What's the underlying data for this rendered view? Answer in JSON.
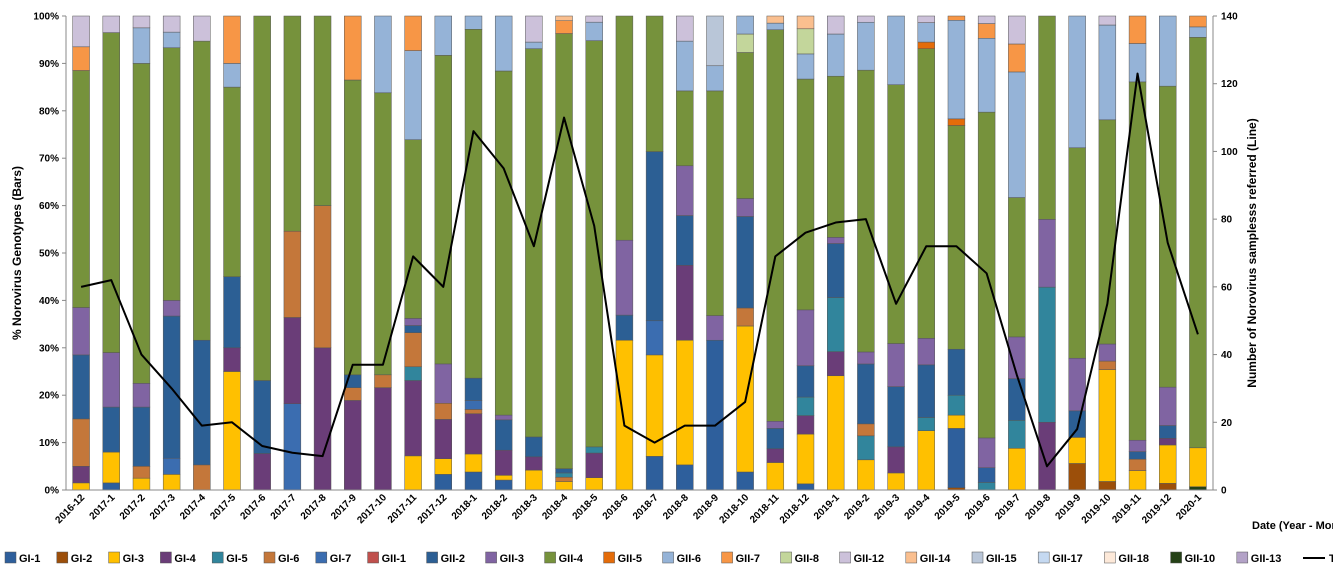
{
  "chart_data": {
    "type": "bar",
    "stacked": true,
    "y_left_label": "% Norovirus Genotypes (Bars)",
    "y_right_label": "Number of Norovirus samplesss referred (Line)",
    "x_label": "Date (Year - Month)",
    "y_left_ticks": [
      "0%",
      "10%",
      "20%",
      "30%",
      "40%",
      "50%",
      "60%",
      "70%",
      "80%",
      "90%",
      "100%"
    ],
    "y_right_range": [
      0,
      140
    ],
    "y_right_ticks": [
      "0",
      "20",
      "40",
      "60",
      "80",
      "100",
      "120",
      "140"
    ],
    "grid": false,
    "legend_position": "bottom",
    "categories": [
      "2016-12",
      "2017-1",
      "2017-2",
      "2017-3",
      "2017-4",
      "2017-5",
      "2017-6",
      "2017-7",
      "2017-8",
      "2017-9",
      "2017-10",
      "2017-11",
      "2017-12",
      "2018-1",
      "2018-2",
      "2018-3",
      "2018-4",
      "2018-5",
      "2018-6",
      "2018-7",
      "2018-8",
      "2018-9",
      "2018-10",
      "2018-11",
      "2018-12",
      "2019-1",
      "2019-2",
      "2019-3",
      "2019-4",
      "2019-5",
      "2019-6",
      "2019-7",
      "2019-8",
      "2019-9",
      "2019-10",
      "2019-11",
      "2019-12",
      "2020-1"
    ],
    "genotypes": [
      {
        "name": "GI-1",
        "color": "#2e5f9c"
      },
      {
        "name": "GI-2",
        "color": "#9c4f0a"
      },
      {
        "name": "GI-3",
        "color": "#ffc000"
      },
      {
        "name": "GI-4",
        "color": "#6a3d78"
      },
      {
        "name": "GI-5",
        "color": "#31859c"
      },
      {
        "name": "GI-6",
        "color": "#c4773a"
      },
      {
        "name": "GI-7",
        "color": "#3b6db0"
      },
      {
        "name": "GII-1",
        "color": "#c0504d"
      },
      {
        "name": "GII-2",
        "color": "#2c5f94"
      },
      {
        "name": "GII-3",
        "color": "#8064a2"
      },
      {
        "name": "GII-4",
        "color": "#76923c"
      },
      {
        "name": "GII-5",
        "color": "#e46c0a"
      },
      {
        "name": "GII-6",
        "color": "#95b3d7"
      },
      {
        "name": "GII-7",
        "color": "#f79646"
      },
      {
        "name": "GII-8",
        "color": "#c3d69b"
      },
      {
        "name": "GII-12",
        "color": "#ccc1da"
      },
      {
        "name": "GII-14",
        "color": "#fabf8f"
      },
      {
        "name": "GII-15",
        "color": "#b9c6d8"
      },
      {
        "name": "GII-17",
        "color": "#c5d9f1"
      },
      {
        "name": "GII-18",
        "color": "#fde9d9"
      },
      {
        "name": "GII-10",
        "color": "#254117"
      },
      {
        "name": "GII-13",
        "color": "#b3a2c7"
      }
    ],
    "stacks": [
      [
        [
          "GI-3",
          1.5
        ],
        [
          "GI-4",
          3.5
        ],
        [
          "GI-6",
          10
        ],
        [
          "GII-2",
          13.5
        ],
        [
          "GII-3",
          10
        ],
        [
          "GII-4",
          50
        ],
        [
          "GII-7",
          5
        ],
        [
          "GII-12",
          6.5
        ]
      ],
      [
        [
          "GI-1",
          1.5
        ],
        [
          "GI-3",
          6.5
        ],
        [
          "GII-2",
          9.5
        ],
        [
          "GII-3",
          11.5
        ],
        [
          "GII-4",
          67.5
        ],
        [
          "GII-12",
          3.5
        ]
      ],
      [
        [
          "GI-3",
          2.5
        ],
        [
          "GI-6",
          2.5
        ],
        [
          "GII-2",
          12.5
        ],
        [
          "GII-3",
          5
        ],
        [
          "GII-4",
          67.5
        ],
        [
          "GII-6",
          7.5
        ],
        [
          "GII-12",
          2.5
        ]
      ],
      [
        [
          "GI-3",
          3.3
        ],
        [
          "GI-7",
          3.4
        ],
        [
          "GII-2",
          30
        ],
        [
          "GII-3",
          3.3
        ],
        [
          "GII-4",
          53.3
        ],
        [
          "GII-6",
          3.3
        ],
        [
          "GII-12",
          3.4
        ]
      ],
      [
        [
          "GI-6",
          5.3
        ],
        [
          "GII-2",
          26.3
        ],
        [
          "GII-4",
          63.1
        ],
        [
          "GII-12",
          5.3
        ]
      ],
      [
        [
          "GI-3",
          25
        ],
        [
          "GI-4",
          5
        ],
        [
          "GII-2",
          15
        ],
        [
          "GII-4",
          40
        ],
        [
          "GII-6",
          5
        ],
        [
          "GII-7",
          10
        ]
      ],
      [
        [
          "GI-4",
          7.7
        ],
        [
          "GII-2",
          15.4
        ],
        [
          "GII-4",
          76.9
        ]
      ],
      [
        [
          "GI-7",
          18.2
        ],
        [
          "GI-4",
          18.2
        ],
        [
          "GI-6",
          18.2
        ],
        [
          "GII-4",
          45.4
        ]
      ],
      [
        [
          "GI-4",
          30
        ],
        [
          "GI-6",
          30
        ],
        [
          "GII-4",
          40
        ]
      ],
      [
        [
          "GI-4",
          18.9
        ],
        [
          "GI-6",
          2.7
        ],
        [
          "GII-2",
          2.7
        ],
        [
          "GII-4",
          62.2
        ],
        [
          "GII-7",
          13.5
        ]
      ],
      [
        [
          "GI-4",
          21.6
        ],
        [
          "GI-6",
          2.7
        ],
        [
          "GII-4",
          59.5
        ],
        [
          "GII-6",
          16.2
        ]
      ],
      [
        [
          "GI-3",
          7.2
        ],
        [
          "GI-4",
          15.9
        ],
        [
          "GI-5",
          2.9
        ],
        [
          "GI-6",
          7.2
        ],
        [
          "GII-2",
          1.5
        ],
        [
          "GII-3",
          1.5
        ],
        [
          "GII-4",
          37.7
        ],
        [
          "GII-6",
          18.8
        ],
        [
          "GII-7",
          7.3
        ]
      ],
      [
        [
          "GI-1",
          3.3
        ],
        [
          "GI-3",
          3.3
        ],
        [
          "GI-4",
          8.3
        ],
        [
          "GI-6",
          3.4
        ],
        [
          "GII-3",
          8.3
        ],
        [
          "GII-4",
          65.1
        ],
        [
          "GII-6",
          8.3
        ]
      ],
      [
        [
          "GI-1",
          3.8
        ],
        [
          "GI-3",
          3.8
        ],
        [
          "GI-4",
          8.5
        ],
        [
          "GI-6",
          0.9
        ],
        [
          "GI-7",
          1.9
        ],
        [
          "GII-2",
          4.7
        ],
        [
          "GII-4",
          73.6
        ],
        [
          "GII-6",
          2.8
        ]
      ],
      [
        [
          "GI-1",
          2.1
        ],
        [
          "GI-3",
          1
        ],
        [
          "GI-4",
          5.3
        ],
        [
          "GII-2",
          6.4
        ],
        [
          "GII-3",
          1
        ],
        [
          "GII-4",
          72.6
        ],
        [
          "GII-6",
          11.6
        ]
      ],
      [
        [
          "GI-3",
          4.2
        ],
        [
          "GI-4",
          2.8
        ],
        [
          "GII-2",
          4.2
        ],
        [
          "GII-4",
          81.9
        ],
        [
          "GII-6",
          1.4
        ],
        [
          "GII-12",
          5.5
        ]
      ],
      [
        [
          "GI-3",
          1.8
        ],
        [
          "GI-6",
          0.9
        ],
        [
          "GI-5",
          0.9
        ],
        [
          "GII-2",
          0.9
        ],
        [
          "GII-4",
          91.8
        ],
        [
          "GII-7",
          2.7
        ],
        [
          "GII-14",
          1
        ]
      ],
      [
        [
          "GI-3",
          2.6
        ],
        [
          "GI-4",
          5.2
        ],
        [
          "GI-5",
          1.3
        ],
        [
          "GII-4",
          85.7
        ],
        [
          "GII-6",
          3.9
        ],
        [
          "GII-12",
          1.3
        ]
      ],
      [
        [
          "GI-3",
          31.6
        ],
        [
          "GII-2",
          5.3
        ],
        [
          "GII-3",
          15.8
        ],
        [
          "GII-4",
          47.3
        ]
      ],
      [
        [
          "GI-1",
          7.1
        ],
        [
          "GI-3",
          21.4
        ],
        [
          "GI-7",
          7.2
        ],
        [
          "GII-2",
          35.7
        ],
        [
          "GII-4",
          28.6
        ]
      ],
      [
        [
          "GI-1",
          5.3
        ],
        [
          "GI-3",
          26.3
        ],
        [
          "GI-4",
          15.8
        ],
        [
          "GII-2",
          10.5
        ],
        [
          "GII-3",
          10.5
        ],
        [
          "GII-4",
          15.8
        ],
        [
          "GII-6",
          10.5
        ],
        [
          "GII-12",
          5.3
        ]
      ],
      [
        [
          "GI-1",
          31.6
        ],
        [
          "GII-3",
          5.2
        ],
        [
          "GII-4",
          47.4
        ],
        [
          "GII-6",
          5.3
        ],
        [
          "GII-15",
          10.5
        ]
      ],
      [
        [
          "GI-1",
          3.8
        ],
        [
          "GI-3",
          30.8
        ],
        [
          "GI-6",
          3.8
        ],
        [
          "GII-2",
          19.3
        ],
        [
          "GII-3",
          3.8
        ],
        [
          "GII-4",
          30.8
        ],
        [
          "GII-8",
          3.9
        ],
        [
          "GII-6",
          3.8
        ]
      ],
      [
        [
          "GI-3",
          5.8
        ],
        [
          "GI-4",
          2.9
        ],
        [
          "GII-2",
          4.3
        ],
        [
          "GII-3",
          1.5
        ],
        [
          "GII-4",
          82.6
        ],
        [
          "GII-6",
          1.4
        ],
        [
          "GII-14",
          1.5
        ]
      ],
      [
        [
          "GI-1",
          1.3
        ],
        [
          "GI-3",
          10.5
        ],
        [
          "GI-4",
          3.9
        ],
        [
          "GI-5",
          3.9
        ],
        [
          "GII-2",
          6.6
        ],
        [
          "GII-3",
          11.8
        ],
        [
          "GII-4",
          48.7
        ],
        [
          "GII-6",
          5.3
        ],
        [
          "GII-8",
          5.3
        ],
        [
          "GII-14",
          2.7
        ]
      ],
      [
        [
          "GI-3",
          24.1
        ],
        [
          "GI-4",
          5.1
        ],
        [
          "GI-5",
          11.4
        ],
        [
          "GII-2",
          11.4
        ],
        [
          "GII-3",
          1.3
        ],
        [
          "GII-4",
          34
        ],
        [
          "GII-6",
          8.9
        ],
        [
          "GII-12",
          3.8
        ]
      ],
      [
        [
          "GI-3",
          6.3
        ],
        [
          "GI-5",
          5
        ],
        [
          "GI-6",
          2.5
        ],
        [
          "GII-2",
          12.5
        ],
        [
          "GII-3",
          2.5
        ],
        [
          "GII-4",
          58.8
        ],
        [
          "GII-6",
          10
        ],
        [
          "GII-12",
          1.3
        ]
      ],
      [
        [
          "GI-3",
          3.6
        ],
        [
          "GI-4",
          5.5
        ],
        [
          "GII-2",
          12.7
        ],
        [
          "GII-3",
          9.1
        ],
        [
          "GII-4",
          54.6
        ],
        [
          "GII-6",
          14.5
        ]
      ],
      [
        [
          "GI-3",
          12.5
        ],
        [
          "GI-5",
          2.8
        ],
        [
          "GII-2",
          11.1
        ],
        [
          "GII-3",
          5.6
        ],
        [
          "GII-4",
          61.1
        ],
        [
          "GII-5",
          1.4
        ],
        [
          "GII-6",
          4.1
        ],
        [
          "GII-12",
          1.4
        ]
      ],
      [
        [
          "GI-2",
          0.5
        ],
        [
          "GI-1",
          12.5
        ],
        [
          "GI-3",
          2.8
        ],
        [
          "GI-5",
          4.2
        ],
        [
          "GII-2",
          9.7
        ],
        [
          "GII-4",
          47.2
        ],
        [
          "GII-5",
          1.4
        ],
        [
          "GII-6",
          20.8
        ],
        [
          "GII-7",
          0.9
        ]
      ],
      [
        [
          "GI-5",
          1.6
        ],
        [
          "GI-1",
          3.1
        ],
        [
          "GII-3",
          6.3
        ],
        [
          "GII-4",
          68.8
        ],
        [
          "GII-6",
          15.6
        ],
        [
          "GII-7",
          3.1
        ],
        [
          "GII-12",
          1.6
        ]
      ],
      [
        [
          "GI-3",
          8.8
        ],
        [
          "GI-5",
          5.9
        ],
        [
          "GII-2",
          8.8
        ],
        [
          "GII-3",
          8.8
        ],
        [
          "GII-4",
          29.4
        ],
        [
          "GII-6",
          26.5
        ],
        [
          "GII-7",
          5.9
        ],
        [
          "GII-12",
          5.9
        ]
      ],
      [
        [
          "GI-4",
          14.3
        ],
        [
          "GI-5",
          28.5
        ],
        [
          "GII-3",
          14.3
        ],
        [
          "GII-4",
          42.9
        ]
      ],
      [
        [
          "GI-2",
          5.6
        ],
        [
          "GI-3",
          5.5
        ],
        [
          "GII-2",
          5.6
        ],
        [
          "GII-3",
          11.1
        ],
        [
          "GII-4",
          44.4
        ],
        [
          "GII-6",
          27.8
        ]
      ],
      [
        [
          "GI-2",
          1.8
        ],
        [
          "GI-3",
          23.6
        ],
        [
          "GI-6",
          1.8
        ],
        [
          "GII-3",
          3.6
        ],
        [
          "GII-4",
          47.3
        ],
        [
          "GII-6",
          20
        ],
        [
          "GII-12",
          1.9
        ]
      ],
      [
        [
          "GI-3",
          4.1
        ],
        [
          "GI-6",
          2.4
        ],
        [
          "GII-2",
          1.6
        ],
        [
          "GII-3",
          2.4
        ],
        [
          "GII-4",
          75.6
        ],
        [
          "GII-6",
          8.1
        ],
        [
          "GII-7",
          5.8
        ]
      ],
      [
        [
          "GI-2",
          1.4
        ],
        [
          "GI-3",
          8.1
        ],
        [
          "GI-4",
          1.4
        ],
        [
          "GII-2",
          2.7
        ],
        [
          "GII-3",
          8.1
        ],
        [
          "GII-4",
          63.5
        ],
        [
          "GII-6",
          14.8
        ]
      ],
      [
        [
          "GII-10",
          0.7
        ],
        [
          "GI-3",
          8.2
        ],
        [
          "GII-4",
          86.6
        ],
        [
          "GII-6",
          2.2
        ],
        [
          "GII-7",
          2.3
        ]
      ]
    ],
    "line": {
      "name": "Total",
      "color": "#000000",
      "values": [
        60,
        62,
        40,
        30,
        19,
        20,
        13,
        11,
        10,
        37,
        37,
        69,
        60,
        106,
        95,
        72,
        110,
        78,
        19,
        14,
        19,
        19,
        26,
        69,
        76,
        79,
        80,
        55,
        72,
        72,
        64,
        34,
        7,
        18,
        55,
        123,
        73,
        46
      ]
    }
  }
}
